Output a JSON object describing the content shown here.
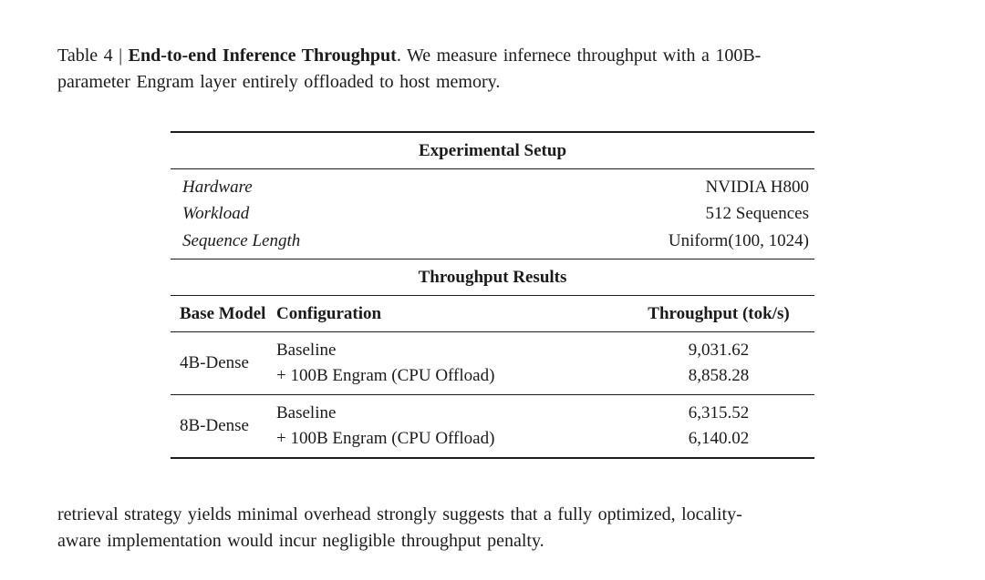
{
  "page": {
    "background_color": "#ffffff",
    "text_color": "#1b1b1b",
    "rule_color": "#1c1c1c"
  },
  "caption": {
    "prefix": "Table 4 | ",
    "title_bold": "End-to-end Inference Throughput",
    "line1_rest": ". We measure infernece throughput with a 100B-",
    "line2": "parameter Engram layer entirely offloaded to host memory."
  },
  "table": {
    "setup_header": "Experimental Setup",
    "setup_rows": [
      {
        "label": "Hardware",
        "value": "NVIDIA H800"
      },
      {
        "label": "Workload",
        "value": "512 Sequences"
      },
      {
        "label": "Sequence Length",
        "value": "Uniform(100, 1024)"
      }
    ],
    "results_header": "Throughput Results",
    "columns": [
      "Base Model",
      "Configuration",
      "Throughput (tok/s)"
    ],
    "result_groups": [
      {
        "model": "4B-Dense",
        "rows": [
          {
            "config": "Baseline",
            "throughput": "9,031.62"
          },
          {
            "config": "+ 100B Engram (CPU Offload)",
            "throughput": "8,858.28"
          }
        ]
      },
      {
        "model": "8B-Dense",
        "rows": [
          {
            "config": "Baseline",
            "throughput": "6,315.52"
          },
          {
            "config": "+ 100B Engram (CPU Offload)",
            "throughput": "6,140.02"
          }
        ]
      }
    ]
  },
  "footer": {
    "line1": "retrieval strategy yields minimal overhead strongly suggests that a fully optimized, locality-",
    "line2": "aware implementation would incur negligible throughput penalty."
  }
}
